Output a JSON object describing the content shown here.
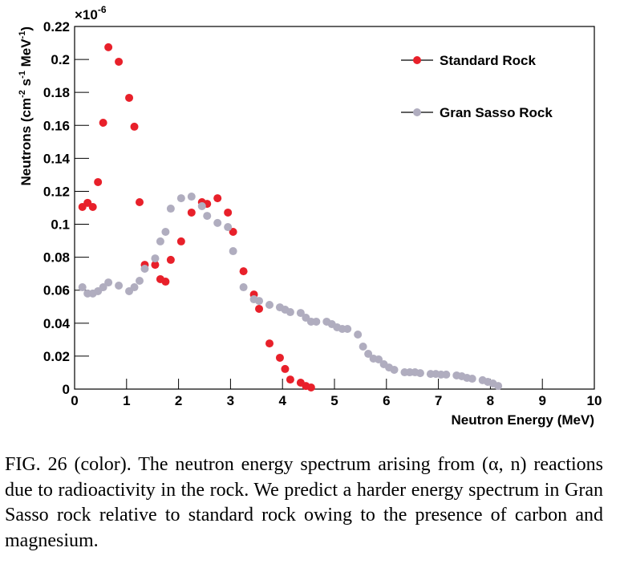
{
  "chart_data": {
    "type": "scatter",
    "y_multiplier": [
      "×10",
      "-6"
    ],
    "ylabel": [
      "Neutrons (cm",
      "-2",
      " s",
      "-1",
      " MeV",
      "-1",
      ")"
    ],
    "xlabel": "Neutron Energy (MeV)",
    "xlim": [
      0,
      10
    ],
    "xticks": [
      0,
      1,
      2,
      3,
      4,
      5,
      6,
      7,
      8,
      9,
      10
    ],
    "ylim": [
      0,
      0.22
    ],
    "yticks": [
      0,
      0.02,
      0.04,
      0.06,
      0.08,
      0.1,
      0.12,
      0.14,
      0.16,
      0.18,
      0.2,
      0.22
    ],
    "legend": "upper right",
    "series": [
      {
        "name": "Standard Rock",
        "color": "#e8202a",
        "x": [
          0.15,
          0.25,
          0.35,
          0.45,
          0.55,
          0.65,
          0.85,
          1.05,
          1.15,
          1.25,
          1.35,
          1.55,
          1.65,
          1.75,
          1.85,
          2.05,
          2.25,
          2.45,
          2.55,
          2.75,
          2.95,
          3.05,
          3.25,
          3.45,
          3.55,
          3.75,
          3.95,
          4.05,
          4.15,
          4.35,
          4.45,
          4.55
        ],
        "values": [
          0.1105,
          0.113,
          0.1105,
          0.1256,
          0.1616,
          0.2074,
          0.1986,
          0.1767,
          0.1592,
          0.1134,
          0.0754,
          0.0754,
          0.0667,
          0.0652,
          0.0784,
          0.0896,
          0.1071,
          0.1134,
          0.1124,
          0.1158,
          0.1071,
          0.0954,
          0.0715,
          0.0574,
          0.0487,
          0.0277,
          0.019,
          0.0122,
          0.0058,
          0.0039,
          0.0019,
          0.001
        ]
      },
      {
        "name": "Gran Sasso Rock",
        "color": "#b0adbf",
        "x": [
          0.15,
          0.25,
          0.35,
          0.45,
          0.55,
          0.65,
          0.85,
          1.05,
          1.15,
          1.25,
          1.35,
          1.55,
          1.65,
          1.75,
          1.85,
          2.05,
          2.25,
          2.45,
          2.55,
          2.75,
          2.95,
          3.05,
          3.25,
          3.45,
          3.55,
          3.75,
          3.95,
          4.05,
          4.15,
          4.35,
          4.45,
          4.55,
          4.65,
          4.85,
          4.95,
          5.05,
          5.15,
          5.25,
          5.45,
          5.55,
          5.65,
          5.75,
          5.85,
          5.95,
          6.05,
          6.15,
          6.35,
          6.45,
          6.55,
          6.65,
          6.85,
          6.95,
          7.05,
          7.15,
          7.35,
          7.45,
          7.55,
          7.65,
          7.85,
          7.95,
          8.05,
          8.15
        ],
        "values": [
          0.0618,
          0.058,
          0.058,
          0.0594,
          0.0618,
          0.0647,
          0.0628,
          0.0594,
          0.0618,
          0.0657,
          0.073,
          0.0793,
          0.0896,
          0.0954,
          0.1095,
          0.1158,
          0.1168,
          0.111,
          0.1051,
          0.1008,
          0.0983,
          0.0837,
          0.0618,
          0.0545,
          0.0535,
          0.0511,
          0.0496,
          0.0482,
          0.0467,
          0.0462,
          0.0433,
          0.0409,
          0.0409,
          0.0409,
          0.0394,
          0.0375,
          0.0365,
          0.0365,
          0.0331,
          0.0258,
          0.0214,
          0.0185,
          0.018,
          0.0151,
          0.0131,
          0.0117,
          0.0102,
          0.0102,
          0.0102,
          0.0097,
          0.0092,
          0.0092,
          0.0088,
          0.0088,
          0.0083,
          0.0078,
          0.0068,
          0.0063,
          0.0054,
          0.0044,
          0.0034,
          0.0019
        ]
      }
    ],
    "caption": "FIG. 26 (color).  The neutron energy spectrum arising from (α, n) reactions due to radioactivity in the rock. We predict a harder energy spectrum in Gran Sasso rock relative to standard rock owing to the presence of carbon and magnesium."
  }
}
